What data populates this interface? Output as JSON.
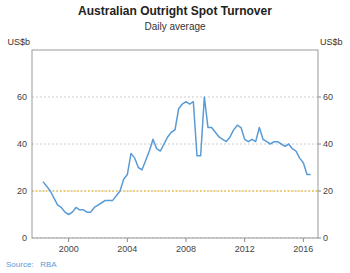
{
  "chart_data": {
    "type": "line",
    "title": "Australian Outright Spot Turnover",
    "subtitle": "Daily average",
    "ylabel": "US$b",
    "y2label": "US$b",
    "source": "Source:   RBA",
    "color": "#5b9bd5",
    "grid": true,
    "xlim": [
      1997.5,
      2017.0
    ],
    "xticks": [
      2000,
      2004,
      2008,
      2012,
      2016
    ],
    "ylim": [
      0,
      80
    ],
    "yticks": [
      0,
      20,
      40,
      60
    ],
    "y2lim": [
      0,
      80
    ],
    "y2ticks": [
      0,
      20,
      40,
      60
    ],
    "hline": {
      "y": 20,
      "color": "#f0c040",
      "line_style": "dotted"
    },
    "x": [
      1998.25,
      1998.5,
      1998.75,
      1999.0,
      1999.25,
      1999.5,
      1999.75,
      2000.0,
      2000.25,
      2000.5,
      2000.75,
      2001.0,
      2001.25,
      2001.5,
      2001.75,
      2002.0,
      2002.25,
      2002.5,
      2002.75,
      2003.0,
      2003.25,
      2003.5,
      2003.75,
      2004.0,
      2004.25,
      2004.5,
      2004.75,
      2005.0,
      2005.25,
      2005.5,
      2005.75,
      2006.0,
      2006.25,
      2006.5,
      2006.75,
      2007.0,
      2007.25,
      2007.5,
      2007.75,
      2008.0,
      2008.25,
      2008.5,
      2008.75,
      2009.0,
      2009.25,
      2009.5,
      2009.75,
      2010.0,
      2010.25,
      2010.5,
      2010.75,
      2011.0,
      2011.25,
      2011.5,
      2011.75,
      2012.0,
      2012.25,
      2012.5,
      2012.75,
      2013.0,
      2013.25,
      2013.5,
      2013.75,
      2014.0,
      2014.25,
      2014.5,
      2014.75,
      2015.0,
      2015.25,
      2015.5,
      2015.75,
      2016.0,
      2016.25,
      2016.5
    ],
    "values": [
      24,
      22,
      20,
      17,
      14,
      13,
      11,
      10,
      11,
      13,
      12,
      12,
      11,
      11,
      13,
      14,
      15,
      16,
      16,
      16,
      18,
      20,
      25,
      27,
      36,
      34,
      30,
      29,
      33,
      37,
      42,
      38,
      37,
      40,
      43,
      45,
      46,
      55,
      57,
      58,
      57,
      58,
      35,
      35,
      60,
      47,
      47,
      45,
      43,
      42,
      41,
      43,
      46,
      48,
      47,
      42,
      41,
      42,
      41,
      47,
      42,
      41,
      40,
      41,
      41,
      40,
      39,
      40,
      38,
      37,
      34,
      32,
      27,
      27
    ]
  }
}
